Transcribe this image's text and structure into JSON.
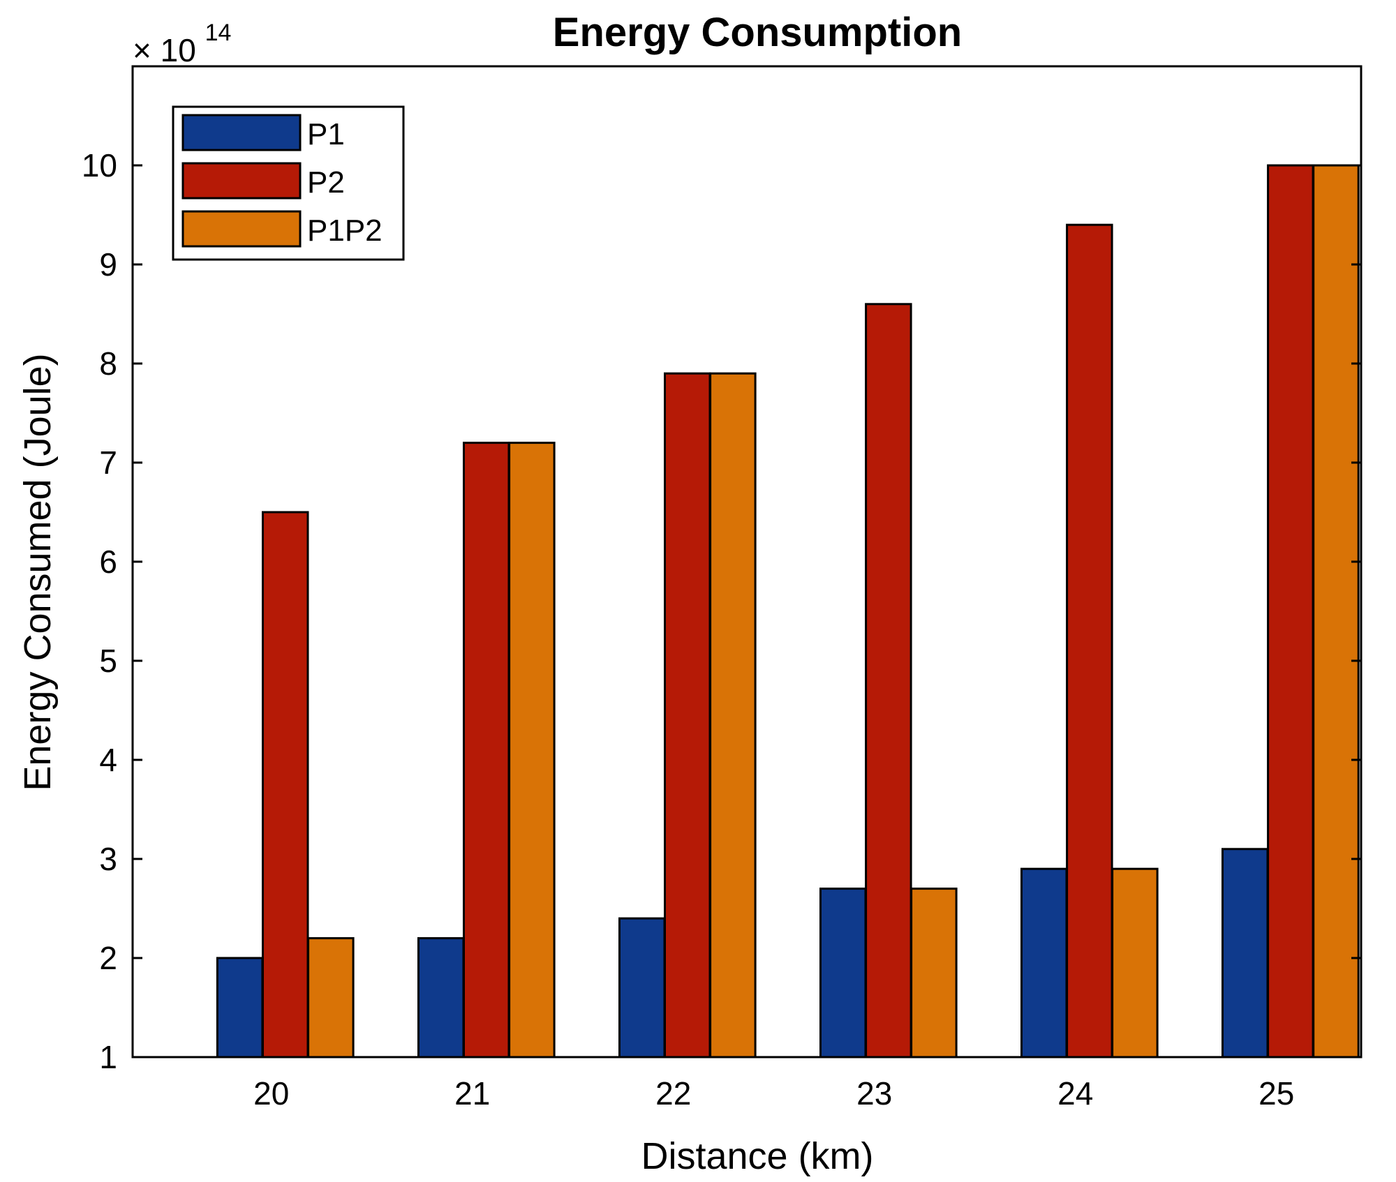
{
  "chart_data": {
    "type": "bar",
    "title": "Energy Consumption",
    "xlabel": "Distance (km)",
    "ylabel": "Energy Consumed (Joule)",
    "multiplier": {
      "base": "× 10",
      "exponent": "14"
    },
    "categories": [
      "20",
      "21",
      "22",
      "23",
      "24",
      "25"
    ],
    "ylim": [
      1,
      11
    ],
    "yticks": [
      1,
      2,
      3,
      4,
      5,
      6,
      7,
      8,
      9,
      10
    ],
    "grid": false,
    "legend_position": "top-left",
    "series": [
      {
        "name": "P1",
        "color": "#0f3a8c",
        "values": [
          2.0,
          2.2,
          2.4,
          2.7,
          2.9,
          3.1
        ]
      },
      {
        "name": "P2",
        "color": "#b51a06",
        "values": [
          6.5,
          7.2,
          7.9,
          8.6,
          9.4,
          10.0
        ]
      },
      {
        "name": "P1P2",
        "color": "#d97306",
        "values": [
          2.2,
          7.2,
          7.9,
          2.7,
          2.9,
          10.0
        ]
      }
    ]
  }
}
